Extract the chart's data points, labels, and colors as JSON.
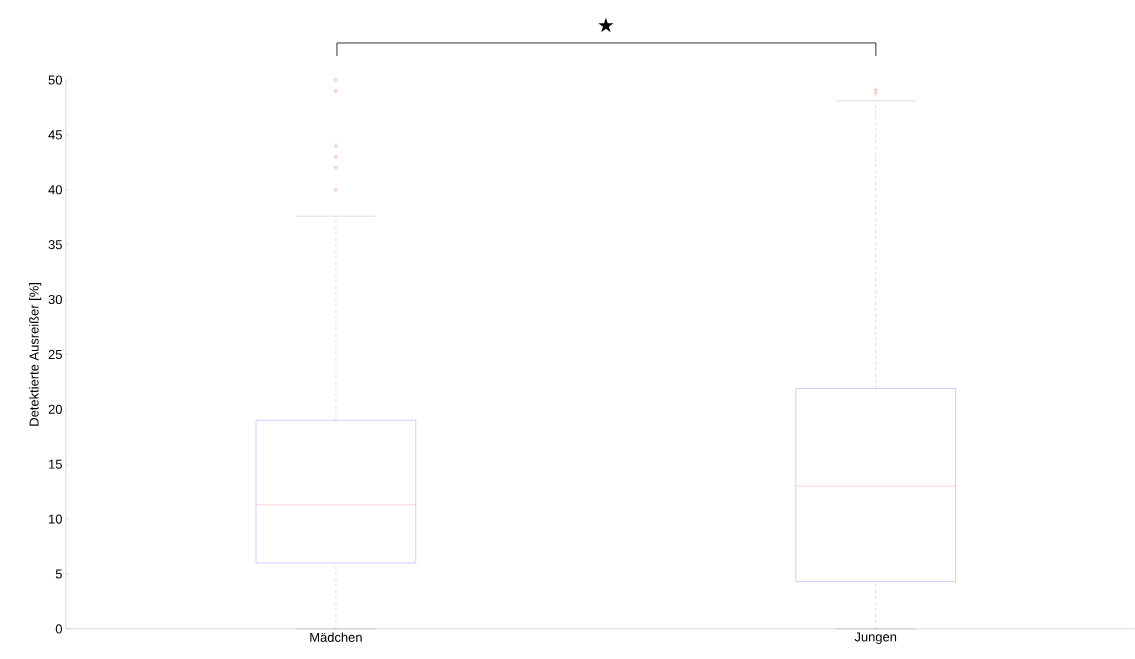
{
  "chart_data": {
    "type": "box",
    "ylabel": "Detektierte Ausreißer [%]",
    "annotations": [
      "★"
    ],
    "categories": [
      "Mädchen",
      "Jungen"
    ],
    "series": [
      {
        "color": "#8080ff",
        "boxes": [
          {
            "low": 0,
            "q1": 6.0,
            "median": 11.3,
            "q3": 19.0,
            "high": 37.6,
            "outliers": [
              40,
              42,
              43,
              44,
              49,
              50
            ]
          },
          {
            "low": 0,
            "q1": 4.3,
            "median": 13.0,
            "q3": 21.9,
            "high": 48.1,
            "outliers": [
              48.8,
              49.1
            ]
          }
        ]
      }
    ],
    "ylim": [
      0,
      50
    ],
    "yticks": [
      0,
      5,
      10,
      15,
      20,
      25,
      30,
      35,
      40,
      45,
      50
    ],
    "grid": false
  }
}
